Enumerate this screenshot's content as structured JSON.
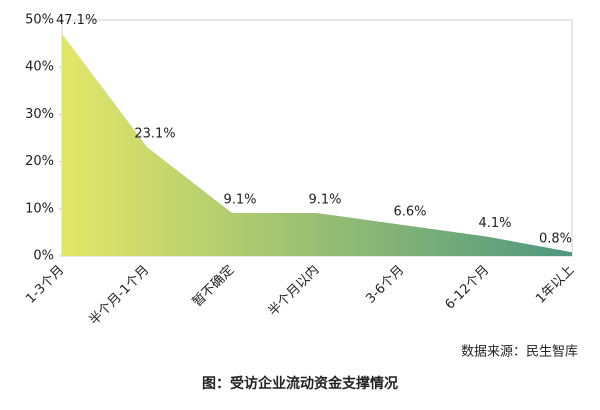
{
  "chart_data": {
    "type": "area",
    "categories": [
      "1-3个月",
      "半个月-1个月",
      "暂不确定",
      "半个月以内",
      "3-6个月",
      "6-12个月",
      "1年以上"
    ],
    "values": [
      47.1,
      23.1,
      9.1,
      9.1,
      6.6,
      4.1,
      0.8
    ],
    "value_labels": [
      "47.1%",
      "23.1%",
      "9.1%",
      "9.1%",
      "6.6%",
      "4.1%",
      "0.8%"
    ],
    "gradient": [
      "#e3e768",
      "#4e977f"
    ],
    "ylim": [
      0,
      50
    ],
    "yticks": [
      {
        "value": 0,
        "label": "0%"
      },
      {
        "value": 10,
        "label": "10%"
      },
      {
        "value": 20,
        "label": "20%"
      },
      {
        "value": 30,
        "label": "30%"
      },
      {
        "value": 40,
        "label": "40%"
      },
      {
        "value": 50,
        "label": "50%"
      }
    ],
    "source": "数据来源：民生智库",
    "caption": "图：受访企业流动资金支撑情况"
  }
}
